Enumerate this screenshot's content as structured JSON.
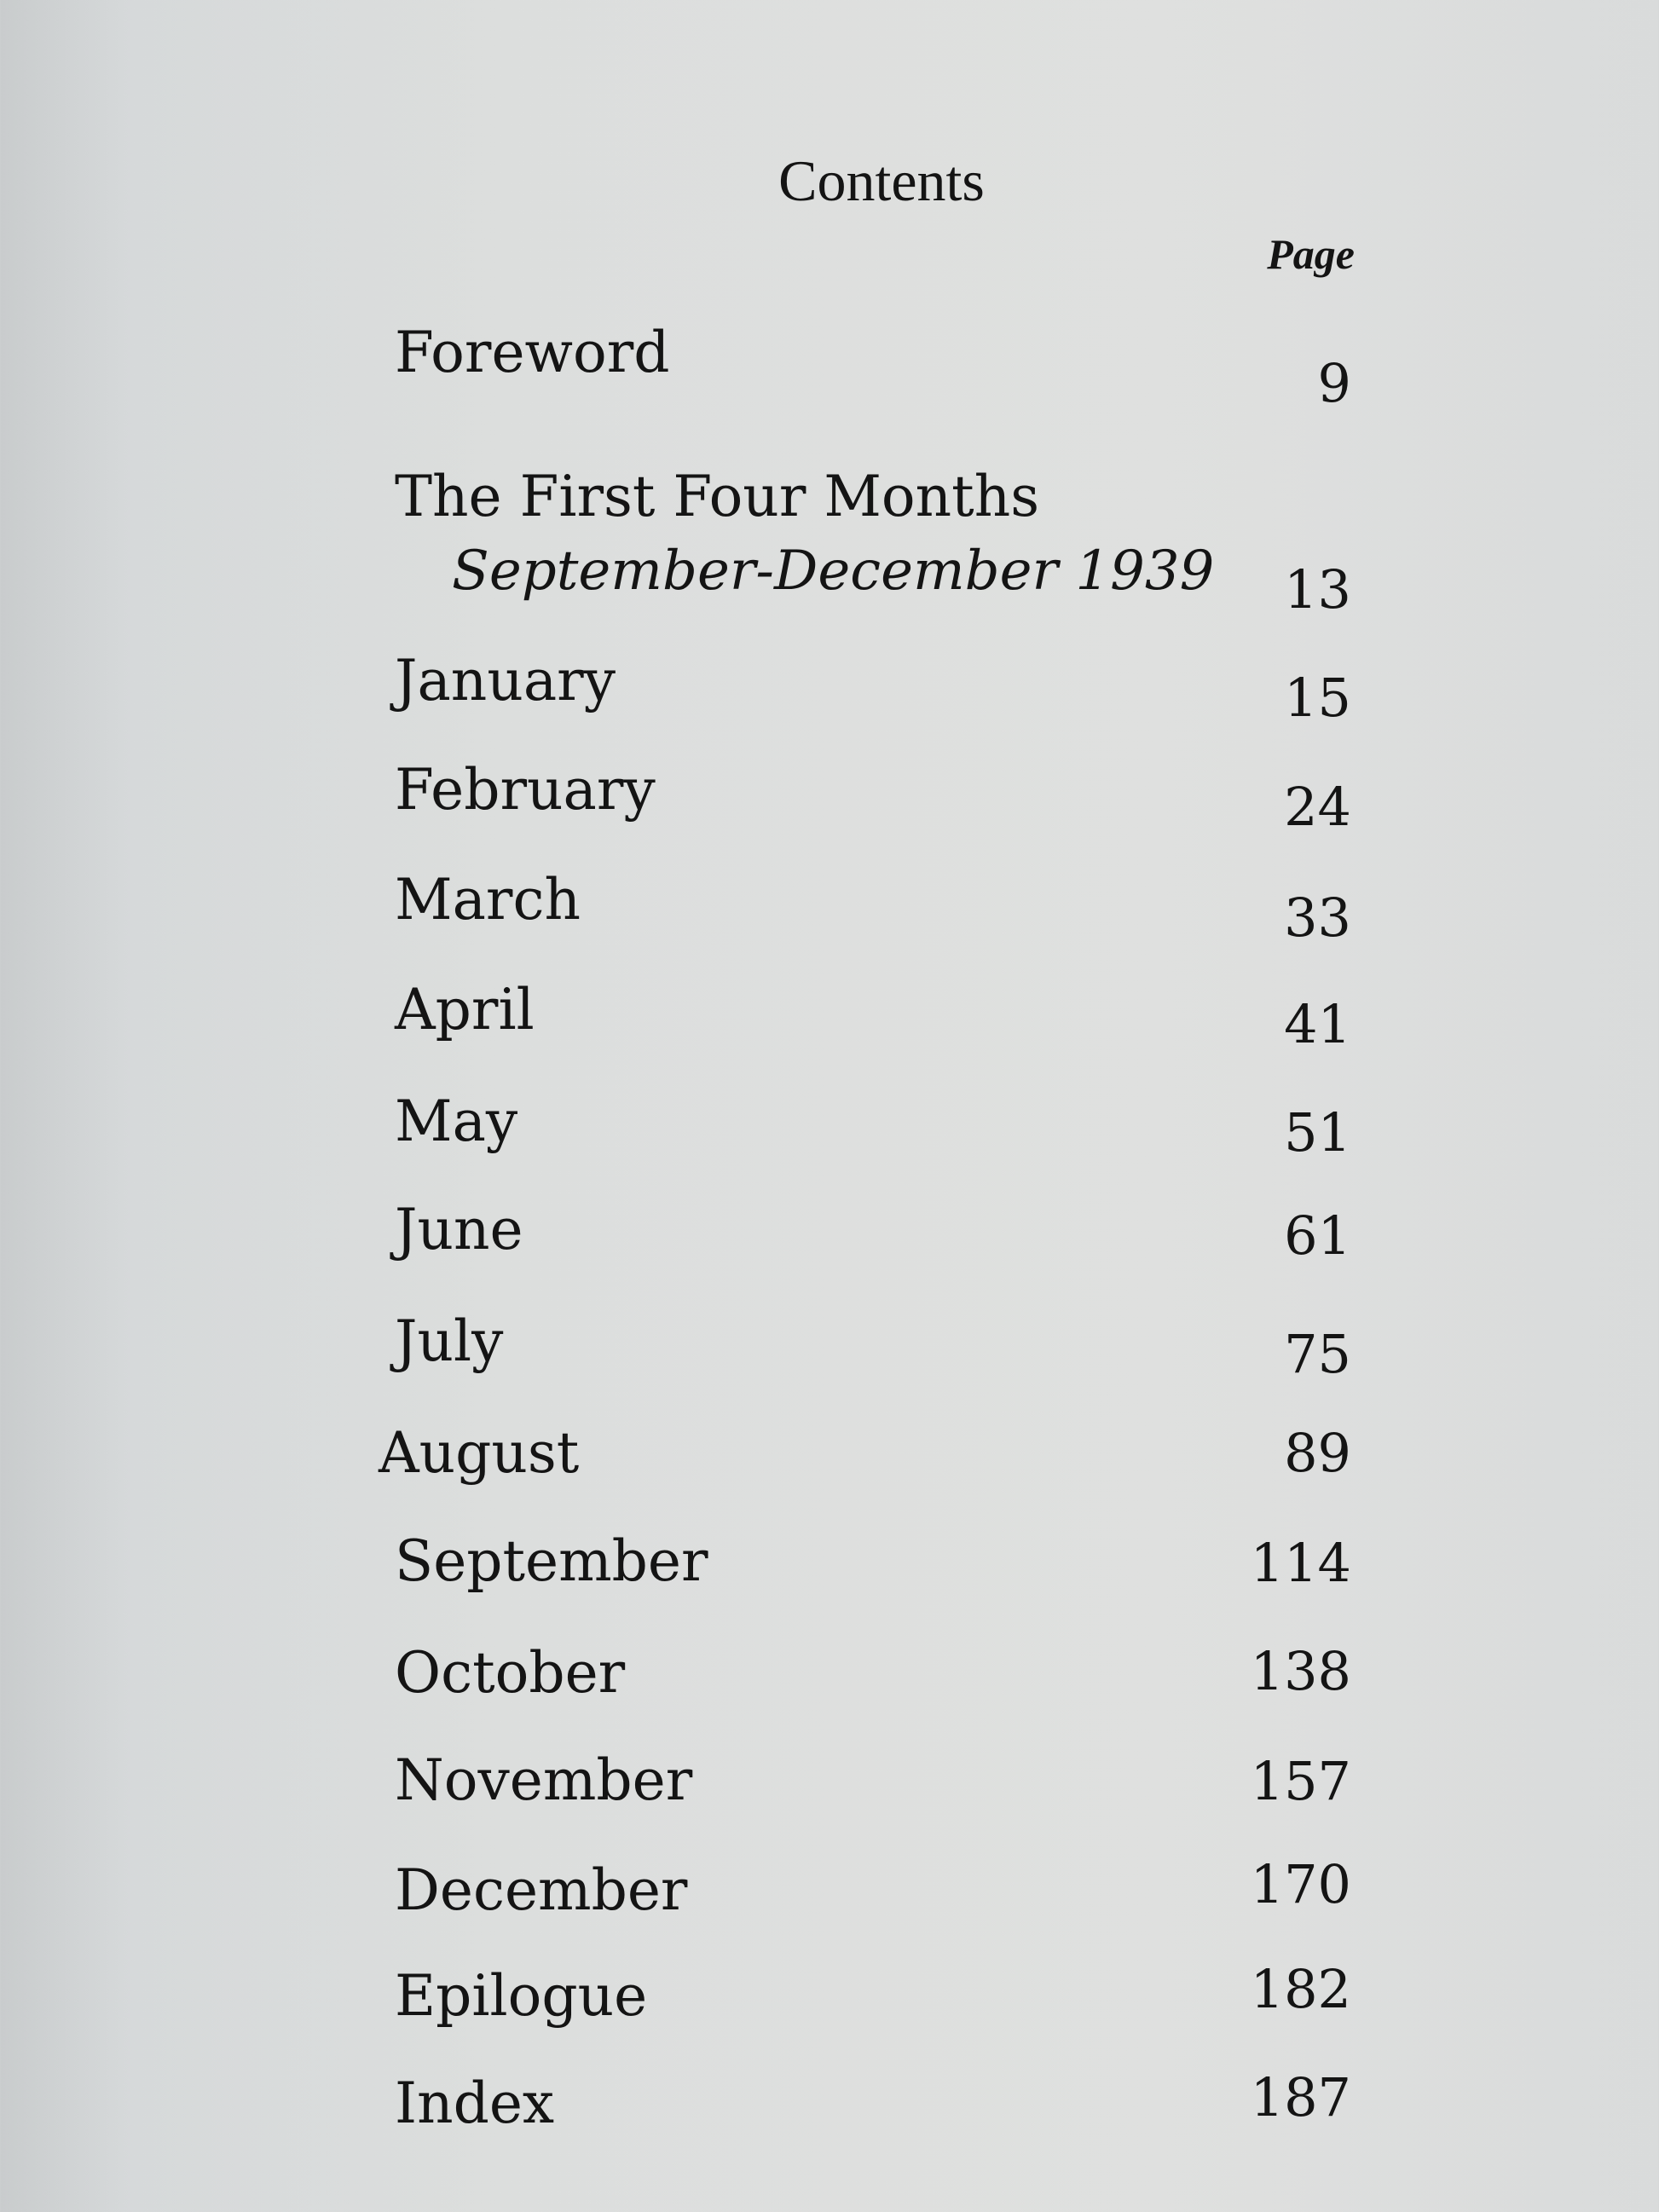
{
  "heading": "Contents",
  "page_column_label": "Page",
  "entries": [
    {
      "title": "Foreword",
      "page": "9"
    },
    {
      "title": "The First Four Months",
      "subtitle": "September-December 1939",
      "page": "13"
    },
    {
      "title": "January",
      "page": "15"
    },
    {
      "title": "February",
      "page": "24"
    },
    {
      "title": "March",
      "page": "33"
    },
    {
      "title": "April",
      "page": "41"
    },
    {
      "title": "May",
      "page": "51"
    },
    {
      "title": "June",
      "page": "61"
    },
    {
      "title": "July",
      "page": "75"
    },
    {
      "title": "August",
      "page": "89"
    },
    {
      "title": "September",
      "page": "114"
    },
    {
      "title": "October",
      "page": "138"
    },
    {
      "title": "November",
      "page": "157"
    },
    {
      "title": "December",
      "page": "170"
    },
    {
      "title": "Epilogue",
      "page": "182"
    },
    {
      "title": "Index",
      "page": "187"
    }
  ]
}
